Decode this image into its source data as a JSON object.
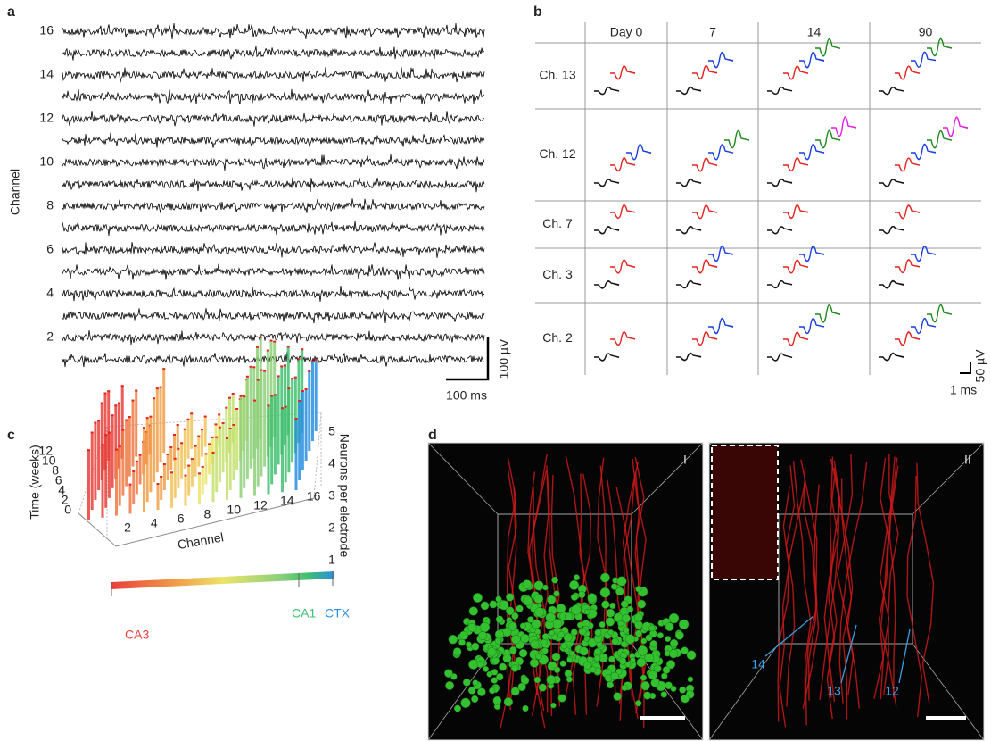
{
  "panel_a": {
    "label": "a",
    "y_label": "Channel",
    "channel_ticks": [
      "16",
      "14",
      "12",
      "10",
      "8",
      "6",
      "4",
      "2"
    ],
    "scale_x": "100 ms",
    "scale_y": "100 µV"
  },
  "panel_b": {
    "label": "b",
    "columns": [
      "Day 0",
      "7",
      "14",
      "90"
    ],
    "rows": [
      "Ch. 13",
      "Ch. 12",
      "Ch. 7",
      "Ch. 3",
      "Ch. 2"
    ],
    "scale_x": "1 ms",
    "scale_y": "50 µV"
  },
  "panel_c": {
    "label": "c",
    "x_label": "Channel",
    "y_label": "Time (weeks)",
    "z_label": "Neurons per electrode",
    "x_ticks": [
      "2",
      "4",
      "6",
      "8",
      "10",
      "12",
      "14",
      "16"
    ],
    "y_ticks": [
      "0",
      "2",
      "4",
      "6",
      "8",
      "10",
      "12"
    ],
    "z_ticks": [
      "1",
      "2",
      "3",
      "4",
      "5"
    ],
    "colorbar_labels": [
      "CA3",
      "CA1",
      "CTX"
    ]
  },
  "panel_d": {
    "label": "d",
    "views": [
      "I",
      "II"
    ],
    "arrow_labels": [
      "14",
      "13",
      "12"
    ]
  }
}
